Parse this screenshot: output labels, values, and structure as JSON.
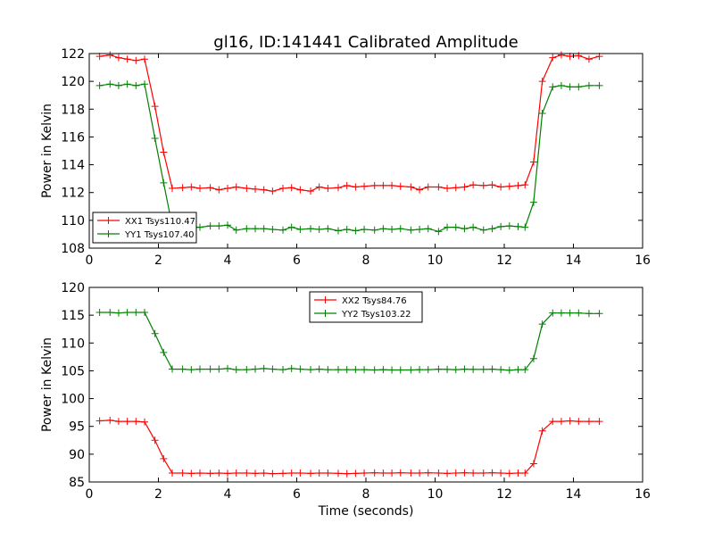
{
  "chart_data": {
    "title": "gl16, ID:141441 Calibrated Amplitude",
    "panels": [
      {
        "type": "line",
        "xlabel": "",
        "ylabel": "Power in Kelvin",
        "xlim": [
          0,
          16
        ],
        "ylim": [
          108,
          122
        ],
        "xticks": [
          0,
          2,
          4,
          6,
          8,
          10,
          12,
          14,
          16
        ],
        "yticks": [
          108,
          110,
          112,
          114,
          116,
          118,
          120,
          122
        ],
        "legend_position": "lower-left",
        "x": [
          0.3,
          0.6,
          0.85,
          1.1,
          1.35,
          1.6,
          1.9,
          2.15,
          2.4,
          2.7,
          2.95,
          3.2,
          3.5,
          3.75,
          4.0,
          4.25,
          4.55,
          4.8,
          5.05,
          5.3,
          5.6,
          5.85,
          6.1,
          6.4,
          6.65,
          6.9,
          7.2,
          7.45,
          7.7,
          7.95,
          8.25,
          8.5,
          8.75,
          9.0,
          9.3,
          9.55,
          9.8,
          10.1,
          10.35,
          10.6,
          10.85,
          11.1,
          11.4,
          11.65,
          11.9,
          12.15,
          12.4,
          12.6,
          12.85,
          13.1,
          13.4,
          13.65,
          13.9,
          14.15,
          14.45,
          14.75
        ],
        "series": [
          {
            "name": "XX1 Tsys110.47",
            "color": "#ff0000",
            "values": [
              121.8,
              121.9,
              121.7,
              121.6,
              121.5,
              121.6,
              118.2,
              114.9,
              112.3,
              112.35,
              112.4,
              112.3,
              112.35,
              112.2,
              112.3,
              112.4,
              112.3,
              112.25,
              112.2,
              112.1,
              112.3,
              112.35,
              112.2,
              112.1,
              112.4,
              112.3,
              112.35,
              112.5,
              112.4,
              112.45,
              112.5,
              112.5,
              112.5,
              112.45,
              112.4,
              112.2,
              112.4,
              112.4,
              112.3,
              112.35,
              112.4,
              112.55,
              112.5,
              112.55,
              112.4,
              112.45,
              112.5,
              112.55,
              114.2,
              120.0,
              121.7,
              121.9,
              121.8,
              121.85,
              121.6,
              121.8
            ]
          },
          {
            "name": "YY1 Tsys107.40",
            "color": "#008000",
            "values": [
              119.7,
              119.8,
              119.7,
              119.8,
              119.7,
              119.8,
              115.9,
              112.7,
              109.6,
              109.6,
              109.5,
              109.5,
              109.6,
              109.6,
              109.65,
              109.3,
              109.4,
              109.4,
              109.4,
              109.35,
              109.3,
              109.5,
              109.35,
              109.4,
              109.35,
              109.4,
              109.25,
              109.35,
              109.25,
              109.35,
              109.3,
              109.4,
              109.35,
              109.4,
              109.3,
              109.35,
              109.4,
              109.2,
              109.5,
              109.5,
              109.4,
              109.5,
              109.3,
              109.4,
              109.55,
              109.6,
              109.55,
              109.5,
              111.3,
              117.7,
              119.6,
              119.7,
              119.6,
              119.6,
              119.7,
              119.7
            ]
          }
        ]
      },
      {
        "type": "line",
        "xlabel": "Time (seconds)",
        "ylabel": "Power in Kelvin",
        "xlim": [
          0,
          16
        ],
        "ylim": [
          85,
          120
        ],
        "xticks": [
          0,
          2,
          4,
          6,
          8,
          10,
          12,
          14,
          16
        ],
        "yticks": [
          85,
          90,
          95,
          100,
          105,
          110,
          115,
          120
        ],
        "legend_position": "upper-center",
        "x": [
          0.3,
          0.6,
          0.85,
          1.1,
          1.35,
          1.6,
          1.9,
          2.15,
          2.4,
          2.7,
          2.95,
          3.2,
          3.5,
          3.75,
          4.0,
          4.25,
          4.55,
          4.8,
          5.05,
          5.3,
          5.6,
          5.85,
          6.1,
          6.4,
          6.65,
          6.9,
          7.2,
          7.45,
          7.7,
          7.95,
          8.25,
          8.5,
          8.75,
          9.0,
          9.3,
          9.55,
          9.8,
          10.1,
          10.35,
          10.6,
          10.85,
          11.1,
          11.4,
          11.65,
          11.9,
          12.15,
          12.4,
          12.6,
          12.85,
          13.1,
          13.4,
          13.65,
          13.9,
          14.15,
          14.45,
          14.75
        ],
        "series": [
          {
            "name": "XX2 Tsys84.76",
            "color": "#ff0000",
            "values": [
              96.0,
              96.1,
              95.9,
              95.9,
              95.9,
              95.8,
              92.5,
              89.2,
              86.6,
              86.6,
              86.55,
              86.6,
              86.55,
              86.6,
              86.55,
              86.6,
              86.6,
              86.55,
              86.6,
              86.5,
              86.55,
              86.6,
              86.6,
              86.55,
              86.6,
              86.6,
              86.55,
              86.5,
              86.55,
              86.6,
              86.65,
              86.6,
              86.6,
              86.65,
              86.6,
              86.6,
              86.65,
              86.6,
              86.55,
              86.6,
              86.65,
              86.6,
              86.6,
              86.65,
              86.6,
              86.55,
              86.6,
              86.6,
              88.3,
              94.2,
              95.9,
              95.9,
              96.0,
              95.9,
              95.9,
              95.9
            ]
          },
          {
            "name": "YY2 Tsys103.22",
            "color": "#008000",
            "values": [
              115.5,
              115.5,
              115.4,
              115.5,
              115.5,
              115.5,
              111.7,
              108.3,
              105.3,
              105.3,
              105.2,
              105.3,
              105.3,
              105.3,
              105.4,
              105.2,
              105.2,
              105.3,
              105.4,
              105.3,
              105.2,
              105.4,
              105.3,
              105.2,
              105.3,
              105.2,
              105.2,
              105.2,
              105.2,
              105.2,
              105.15,
              105.2,
              105.15,
              105.15,
              105.15,
              105.2,
              105.2,
              105.3,
              105.25,
              105.2,
              105.3,
              105.25,
              105.25,
              105.3,
              105.2,
              105.1,
              105.2,
              105.2,
              107.2,
              113.4,
              115.4,
              115.4,
              115.4,
              115.4,
              115.3,
              115.3
            ]
          }
        ]
      }
    ]
  }
}
